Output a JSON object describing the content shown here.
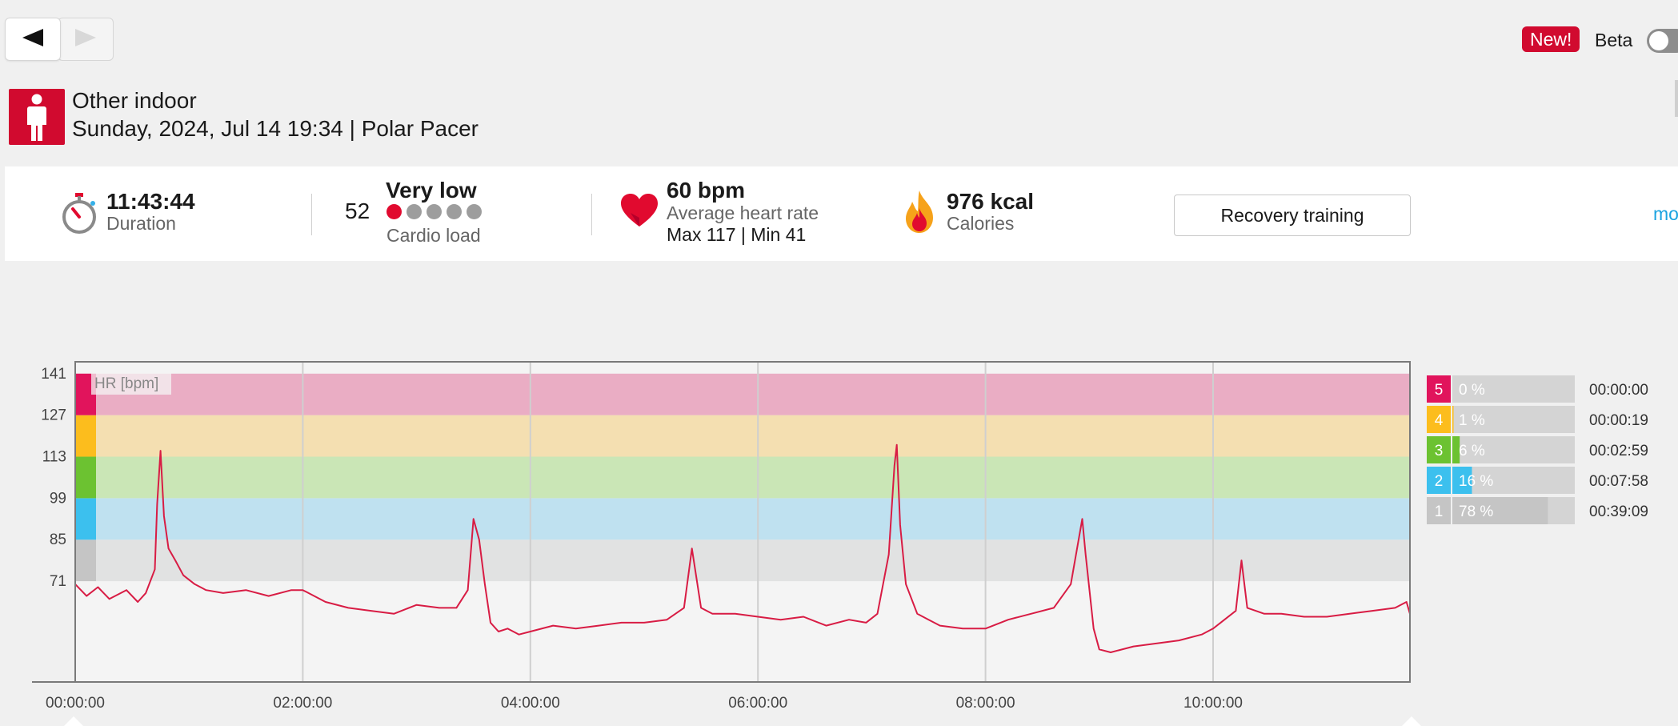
{
  "nav": {
    "back_icon": "back-arrow-icon",
    "forward_icon": "forward-arrow-icon"
  },
  "header": {
    "new_badge": "New!",
    "beta_label": "Beta",
    "beta_enabled": false
  },
  "session": {
    "sport_icon": "person-standing-icon",
    "title": "Other indoor",
    "subtitle": "Sunday, 2024, Jul 14 19:34 | Polar Pacer"
  },
  "summary": {
    "duration_value": "11:43:44",
    "duration_label": "Duration",
    "cardio_number": "52",
    "cardio_level": "Very low",
    "cardio_label": "Cardio load",
    "cardio_dots_filled": 1,
    "cardio_dots_total": 5,
    "hr_value": "60 bpm",
    "hr_label": "Average heart rate",
    "hr_minmax": "Max 117  |  Min 41",
    "calories_value": "976 kcal",
    "calories_label": "Calories",
    "benefit_button": "Recovery training",
    "more_link": "mo"
  },
  "chart_data": {
    "type": "line",
    "ylabel": "HR [bpm]",
    "yticks": [
      71,
      85,
      99,
      113,
      127,
      141
    ],
    "ylim": [
      37,
      145
    ],
    "xticks": [
      "00:00:00",
      "02:00:00",
      "04:00:00",
      "06:00:00",
      "08:00:00",
      "10:00:00"
    ],
    "xlim_hours": [
      0,
      11.73
    ],
    "zones": [
      {
        "zone": "1",
        "from": 71,
        "to": 85,
        "color": "#c5c5c5",
        "band": "#e1e2e2"
      },
      {
        "zone": "2",
        "from": 85,
        "to": 99,
        "color": "#3cc0ee",
        "band": "#bfe1f0"
      },
      {
        "zone": "3",
        "from": 99,
        "to": 113,
        "color": "#6cc231",
        "band": "#cae6b6"
      },
      {
        "zone": "4",
        "from": 113,
        "to": 127,
        "color": "#fcbd1d",
        "band": "#f4dfb1"
      },
      {
        "zone": "5",
        "from": 127,
        "to": 141,
        "color": "#e1145c",
        "band": "#eaadc4"
      }
    ],
    "zone_summary": [
      {
        "zone": "5",
        "percent": "0 %",
        "time": "00:00:00",
        "fraction": 0.0
      },
      {
        "zone": "4",
        "percent": "1 %",
        "time": "00:00:19",
        "fraction": 0.01
      },
      {
        "zone": "3",
        "percent": "6 %",
        "time": "00:02:59",
        "fraction": 0.06
      },
      {
        "zone": "2",
        "percent": "16 %",
        "time": "00:07:58",
        "fraction": 0.16
      },
      {
        "zone": "1",
        "percent": "78 %",
        "time": "00:39:09",
        "fraction": 0.78
      }
    ],
    "line_color": "#d81c44",
    "series": [
      {
        "x": [
          0.0,
          0.1,
          0.2,
          0.3,
          0.45,
          0.55,
          0.62,
          0.7,
          0.72,
          0.75,
          0.78,
          0.82,
          0.88,
          0.95,
          1.05,
          1.15,
          1.3,
          1.5,
          1.7,
          1.9,
          2.0,
          2.2,
          2.4,
          2.6,
          2.8,
          3.0,
          3.2,
          3.35,
          3.45,
          3.5,
          3.55,
          3.6,
          3.65,
          3.72,
          3.8,
          3.9,
          4.0,
          4.2,
          4.4,
          4.6,
          4.8,
          5.0,
          5.2,
          5.35,
          5.42,
          5.5,
          5.6,
          5.8,
          6.0,
          6.2,
          6.4,
          6.6,
          6.8,
          6.95,
          7.05,
          7.15,
          7.2,
          7.22,
          7.25,
          7.3,
          7.4,
          7.5,
          7.6,
          7.8,
          8.0,
          8.2,
          8.4,
          8.6,
          8.75,
          8.85,
          8.88,
          8.95,
          9.0,
          9.1,
          9.3,
          9.5,
          9.7,
          9.9,
          10.0,
          10.1,
          10.2,
          10.25,
          10.3,
          10.45,
          10.6,
          10.8,
          11.0,
          11.2,
          11.4,
          11.6,
          11.7,
          11.73
        ],
        "y": [
          70,
          66,
          69,
          65,
          68,
          64,
          67,
          75,
          97,
          115,
          93,
          82,
          78,
          73,
          70,
          68,
          67,
          68,
          66,
          68,
          68,
          64,
          62,
          61,
          60,
          63,
          62,
          62,
          68,
          92,
          85,
          70,
          57,
          54,
          55,
          53,
          54,
          56,
          55,
          56,
          57,
          57,
          58,
          62,
          82,
          62,
          60,
          60,
          59,
          58,
          59,
          56,
          58,
          57,
          60,
          80,
          110,
          117,
          90,
          70,
          60,
          58,
          56,
          55,
          55,
          58,
          60,
          62,
          70,
          92,
          80,
          55,
          48,
          47,
          49,
          50,
          51,
          53,
          55,
          58,
          61,
          78,
          62,
          60,
          60,
          59,
          59,
          60,
          61,
          62,
          64,
          60
        ]
      }
    ]
  }
}
